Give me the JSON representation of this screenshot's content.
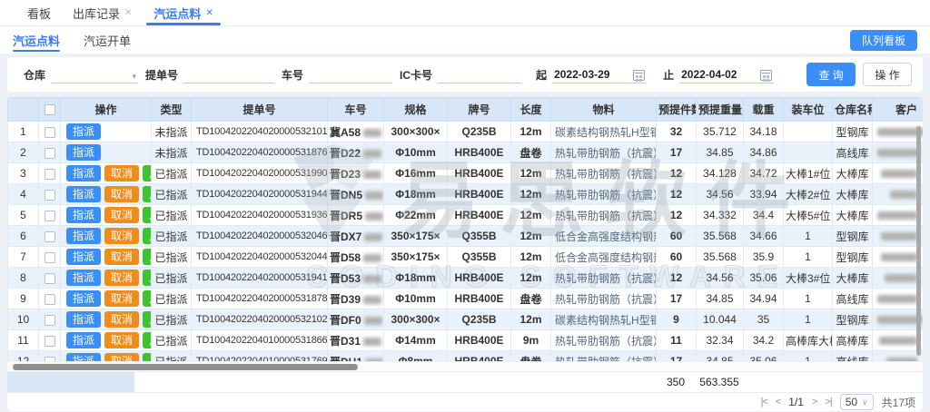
{
  "tabs": [
    {
      "label": "看板",
      "closable": false
    },
    {
      "label": "出库记录",
      "closable": true
    },
    {
      "label": "汽运点料",
      "closable": true,
      "active": true
    }
  ],
  "icons": {
    "close": "✕",
    "caret_down": "▾",
    "select_caret": "∨",
    "pg_first": "|<",
    "pg_prev": "<",
    "pg_next": ">",
    "pg_last": ">|"
  },
  "subtabs": [
    {
      "label": "汽运点料",
      "active": true
    },
    {
      "label": "汽运开单",
      "active": false
    }
  ],
  "queue_board_button": "队列看板",
  "filters": {
    "warehouse_label": "仓库",
    "bill_label": "提单号",
    "truck_label": "车号",
    "ic_card_label": "IC卡号",
    "date_from_label": "起",
    "date_from": "2022-03-29",
    "date_to_label": "止",
    "date_to": "2022-04-02",
    "search_button": "查 询",
    "action_button": "操 作"
  },
  "table": {
    "columns": [
      "",
      "",
      "操作",
      "类型",
      "提单号",
      "车号",
      "规格",
      "牌号",
      "长度",
      "物料",
      "预提件数",
      "预提重量",
      "载重",
      "装车位",
      "仓库名称",
      "客户"
    ],
    "action_labels": {
      "dispatch": "指派",
      "cancel": "取消",
      "tally": "点料"
    },
    "rows": [
      {
        "no": 1,
        "actions": [
          "dispatch"
        ],
        "type": "未指派",
        "bill": "TD1004202204020000532101",
        "plate": "冀A58",
        "spec": "300×300×",
        "grade": "Q235B",
        "len": "12m",
        "mat": "碳素结构钢热轧H型钢",
        "qty": "32",
        "wt": "35.712",
        "load": "34.18",
        "slot": "",
        "wh": "型钢库"
      },
      {
        "no": 2,
        "actions": [
          "dispatch"
        ],
        "type": "未指派",
        "bill": "TD1004202204020000531876",
        "plate": "晋D22",
        "spec": "Φ10mm",
        "grade": "HRB400E",
        "len": "盘卷",
        "mat": "热轧带肋钢筋（抗震）",
        "qty": "17",
        "wt": "34.85",
        "load": "34.86",
        "slot": "",
        "wh": "高线库"
      },
      {
        "no": 3,
        "actions": [
          "dispatch",
          "cancel",
          "tally"
        ],
        "type": "已指派",
        "bill": "TD1004202204020000531990",
        "plate": "晋D23",
        "spec": "Φ16mm",
        "grade": "HRB400E",
        "len": "12m",
        "mat": "热轧带肋钢筋（抗震）",
        "qty": "12",
        "wt": "34.128",
        "load": "34.72",
        "slot": "大棒1#位",
        "wh": "大棒库"
      },
      {
        "no": 4,
        "actions": [
          "dispatch",
          "cancel",
          "tally"
        ],
        "type": "已指派",
        "bill": "TD1004202204020000531944",
        "plate": "晋DN5",
        "spec": "Φ18mm",
        "grade": "HRB400E",
        "len": "12m",
        "mat": "热轧带肋钢筋（抗震）",
        "qty": "12",
        "wt": "34.56",
        "load": "33.94",
        "slot": "大棒2#位",
        "wh": "大棒库"
      },
      {
        "no": 5,
        "actions": [
          "dispatch",
          "cancel",
          "tally"
        ],
        "type": "已指派",
        "bill": "TD1004202204020000531936",
        "plate": "晋DR5",
        "spec": "Φ22mm",
        "grade": "HRB400E",
        "len": "12m",
        "mat": "热轧带肋钢筋（抗震）",
        "qty": "12",
        "wt": "34.332",
        "load": "34.4",
        "slot": "大棒5#位",
        "wh": "大棒库"
      },
      {
        "no": 6,
        "actions": [
          "dispatch",
          "cancel",
          "tally"
        ],
        "type": "已指派",
        "bill": "TD1004202204020000532046",
        "plate": "晋DX7",
        "spec": "350×175×",
        "grade": "Q355B",
        "len": "12m",
        "mat": "低合金高强度结构钢热轧",
        "qty": "60",
        "wt": "35.568",
        "load": "34.66",
        "slot": "1",
        "wh": "型钢库"
      },
      {
        "no": 7,
        "actions": [
          "dispatch",
          "cancel",
          "tally"
        ],
        "type": "已指派",
        "bill": "TD1004202204020000532044",
        "plate": "晋D58",
        "spec": "350×175×",
        "grade": "Q355B",
        "len": "12m",
        "mat": "低合金高强度结构钢热轧",
        "qty": "60",
        "wt": "35.568",
        "load": "35.9",
        "slot": "1",
        "wh": "型钢库"
      },
      {
        "no": 8,
        "actions": [
          "dispatch",
          "cancel",
          "tally"
        ],
        "type": "已指派",
        "bill": "TD1004202204020000531941",
        "plate": "晋D53",
        "spec": "Φ18mm",
        "grade": "HRB400E",
        "len": "12m",
        "mat": "热轧带肋钢筋（抗震）",
        "qty": "12",
        "wt": "34.56",
        "load": "35.06",
        "slot": "大棒3#位",
        "wh": "大棒库"
      },
      {
        "no": 9,
        "actions": [
          "dispatch",
          "cancel",
          "tally"
        ],
        "type": "已指派",
        "bill": "TD1004202204020000531878",
        "plate": "晋D39",
        "spec": "Φ10mm",
        "grade": "HRB400E",
        "len": "盘卷",
        "mat": "热轧带肋钢筋（抗震）",
        "qty": "17",
        "wt": "34.85",
        "load": "34.94",
        "slot": "1",
        "wh": "高线库"
      },
      {
        "no": 10,
        "actions": [
          "dispatch",
          "cancel",
          "tally"
        ],
        "type": "已指派",
        "bill": "TD1004202204020000532102",
        "plate": "晋DF0",
        "spec": "300×300×",
        "grade": "Q235B",
        "len": "12m",
        "mat": "碳素结构钢热轧H型钢",
        "qty": "9",
        "wt": "10.044",
        "load": "35",
        "slot": "1",
        "wh": "型钢库"
      },
      {
        "no": 11,
        "actions": [
          "dispatch",
          "cancel",
          "tally"
        ],
        "type": "已指派",
        "bill": "TD1004202204010000531866",
        "plate": "晋D31",
        "spec": "Φ14mm",
        "grade": "HRB400E",
        "len": "9m",
        "mat": "热轧带肋钢筋（抗震）",
        "qty": "11",
        "wt": "32.34",
        "load": "34.2",
        "slot": "高棒库大棒区",
        "wh": "高棒库"
      },
      {
        "no": 12,
        "actions": [
          "dispatch",
          "cancel",
          "tally"
        ],
        "type": "已指派",
        "bill": "TD1004202204010000531769",
        "plate": "晋DH1",
        "spec": "Φ8mm",
        "grade": "HRB400E",
        "len": "盘卷",
        "mat": "热轧带肋钢筋（抗震）",
        "qty": "17",
        "wt": "34.85",
        "load": "35.06",
        "slot": "1",
        "wh": "高线库"
      }
    ],
    "summary": {
      "qty_total": "350",
      "weight_total": "563.355"
    }
  },
  "watermark": {
    "title": "易思软件",
    "subtitle": "CODING SOFTWARE"
  },
  "pagination": {
    "page": "1/1",
    "page_size": "50",
    "total": "共17项"
  },
  "colors": {
    "accent_blue": "#3a8ef6",
    "cancel_orange": "#f08c19",
    "tally_green": "#3ec42e",
    "header_bg": "#d7e7f8",
    "row_alt_bg": "#e9f2fb"
  }
}
